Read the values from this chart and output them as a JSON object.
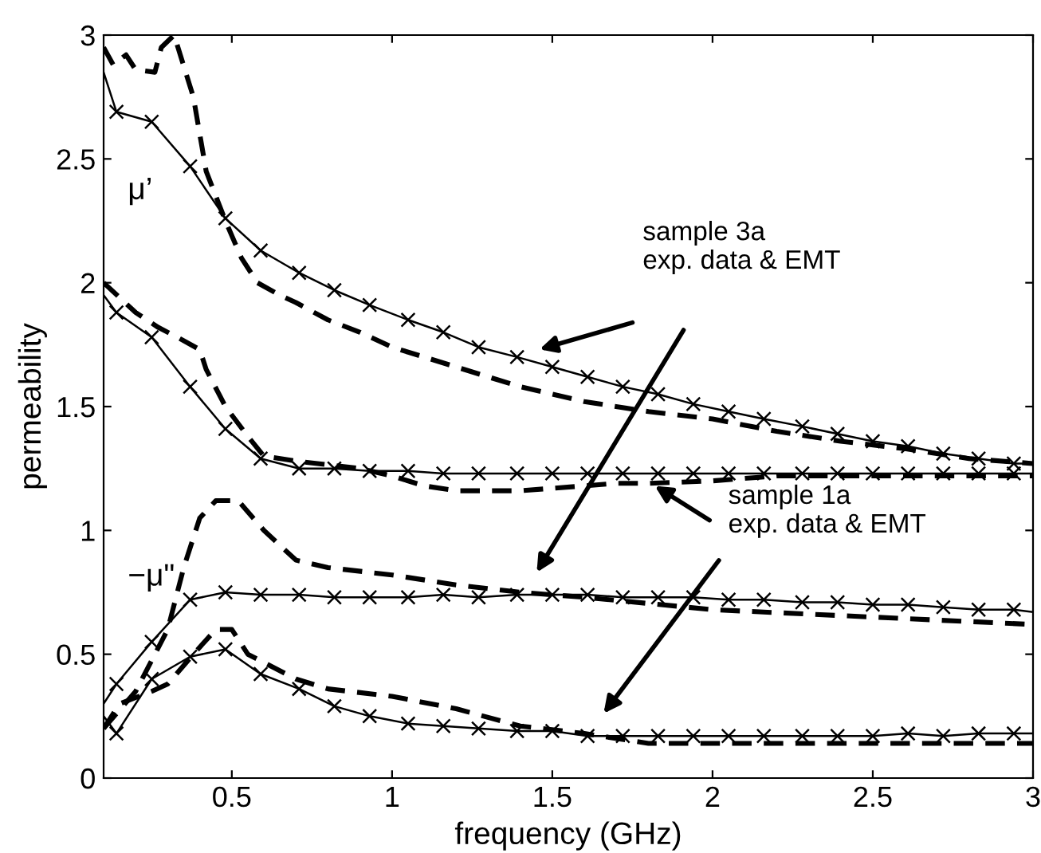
{
  "chart_data": {
    "type": "line",
    "xlabel": "frequency (GHz)",
    "ylabel": "permeability",
    "xlim": [
      0.1,
      3
    ],
    "ylim": [
      0,
      3
    ],
    "xticks": [
      0.5,
      1,
      1.5,
      2,
      2.5,
      3
    ],
    "yticks": [
      0,
      0.5,
      1,
      1.5,
      2,
      2.5,
      3
    ],
    "grid": false,
    "legend": false,
    "series": [
      {
        "color": "#000000",
        "marker": "cross",
        "line_style": "solid",
        "x": [
          0.1,
          0.14,
          0.25,
          0.37,
          0.48,
          0.59,
          0.71,
          0.82,
          0.93,
          1.05,
          1.16,
          1.27,
          1.39,
          1.5,
          1.61,
          1.72,
          1.83,
          1.94,
          2.05,
          2.16,
          2.28,
          2.39,
          2.5,
          2.61,
          2.72,
          2.83,
          2.94,
          3
        ],
        "values": [
          2.85,
          2.69,
          2.65,
          2.47,
          2.26,
          2.13,
          2.04,
          1.97,
          1.91,
          1.85,
          1.8,
          1.74,
          1.7,
          1.66,
          1.62,
          1.58,
          1.55,
          1.51,
          1.48,
          1.45,
          1.42,
          1.39,
          1.36,
          1.34,
          1.31,
          1.29,
          1.27,
          1.27
        ]
      },
      {
        "color": "#000000",
        "marker": "none",
        "line_style": "dashed",
        "x": [
          0.1,
          0.13,
          0.17,
          0.2,
          0.26,
          0.28,
          0.32,
          0.38,
          0.42,
          0.48,
          0.53,
          0.58,
          0.65,
          0.7,
          0.8,
          0.9,
          1.0,
          1.1,
          1.2,
          1.3,
          1.4,
          1.5,
          1.6,
          1.8,
          2.0,
          2.2,
          2.4,
          2.6,
          2.8,
          3
        ],
        "values": [
          2.95,
          2.88,
          2.92,
          2.86,
          2.85,
          2.95,
          3.0,
          2.75,
          2.45,
          2.25,
          2.1,
          2.0,
          1.95,
          1.92,
          1.85,
          1.8,
          1.74,
          1.7,
          1.66,
          1.62,
          1.58,
          1.55,
          1.52,
          1.48,
          1.45,
          1.4,
          1.36,
          1.33,
          1.29,
          1.27
        ]
      },
      {
        "color": "#000000",
        "marker": "cross",
        "line_style": "solid",
        "x": [
          0.1,
          0.14,
          0.25,
          0.37,
          0.48,
          0.59,
          0.71,
          0.82,
          0.93,
          1.05,
          1.16,
          1.27,
          1.39,
          1.5,
          1.61,
          1.72,
          1.83,
          1.94,
          2.05,
          2.16,
          2.28,
          2.39,
          2.5,
          2.61,
          2.72,
          2.83,
          2.94,
          3
        ],
        "values": [
          1.95,
          1.88,
          1.78,
          1.58,
          1.41,
          1.29,
          1.25,
          1.25,
          1.24,
          1.24,
          1.23,
          1.23,
          1.23,
          1.23,
          1.23,
          1.23,
          1.23,
          1.23,
          1.23,
          1.23,
          1.23,
          1.23,
          1.23,
          1.23,
          1.23,
          1.23,
          1.23,
          1.23
        ]
      },
      {
        "color": "#000000",
        "marker": "none",
        "line_style": "dashed",
        "x": [
          0.1,
          0.2,
          0.27,
          0.33,
          0.4,
          0.42,
          0.48,
          0.55,
          0.6,
          0.7,
          0.9,
          1.0,
          1.1,
          1.2,
          1.4,
          1.5,
          1.7,
          1.8,
          2.0,
          2.2,
          2.5,
          3
        ],
        "values": [
          2.0,
          1.88,
          1.82,
          1.78,
          1.73,
          1.65,
          1.5,
          1.38,
          1.3,
          1.28,
          1.25,
          1.22,
          1.18,
          1.16,
          1.16,
          1.17,
          1.19,
          1.19,
          1.2,
          1.22,
          1.22,
          1.22
        ]
      },
      {
        "color": "#000000",
        "marker": "cross",
        "line_style": "solid",
        "x": [
          0.1,
          0.14,
          0.25,
          0.37,
          0.48,
          0.59,
          0.71,
          0.82,
          0.93,
          1.05,
          1.16,
          1.27,
          1.39,
          1.5,
          1.61,
          1.72,
          1.83,
          1.94,
          2.05,
          2.16,
          2.28,
          2.39,
          2.5,
          2.61,
          2.72,
          2.83,
          2.94,
          3
        ],
        "values": [
          0.3,
          0.38,
          0.55,
          0.72,
          0.75,
          0.74,
          0.74,
          0.73,
          0.73,
          0.73,
          0.74,
          0.73,
          0.74,
          0.74,
          0.74,
          0.73,
          0.73,
          0.73,
          0.72,
          0.72,
          0.71,
          0.71,
          0.7,
          0.7,
          0.69,
          0.68,
          0.68,
          0.67
        ]
      },
      {
        "color": "#000000",
        "marker": "none",
        "line_style": "dashed",
        "x": [
          0.1,
          0.2,
          0.3,
          0.35,
          0.4,
          0.45,
          0.52,
          0.6,
          0.7,
          0.8,
          1.0,
          1.2,
          1.4,
          1.6,
          2.0,
          2.5,
          3
        ],
        "values": [
          0.2,
          0.35,
          0.6,
          0.85,
          1.05,
          1.12,
          1.12,
          1.0,
          0.88,
          0.85,
          0.82,
          0.78,
          0.75,
          0.73,
          0.68,
          0.65,
          0.62
        ]
      },
      {
        "color": "#000000",
        "marker": "cross",
        "line_style": "solid",
        "x": [
          0.1,
          0.14,
          0.25,
          0.37,
          0.48,
          0.59,
          0.71,
          0.82,
          0.93,
          1.05,
          1.16,
          1.27,
          1.39,
          1.5,
          1.61,
          1.72,
          1.83,
          1.94,
          2.05,
          2.16,
          2.28,
          2.39,
          2.5,
          2.61,
          2.72,
          2.83,
          2.94,
          3
        ],
        "values": [
          0.25,
          0.18,
          0.4,
          0.49,
          0.52,
          0.42,
          0.36,
          0.29,
          0.25,
          0.22,
          0.21,
          0.2,
          0.19,
          0.19,
          0.17,
          0.17,
          0.17,
          0.17,
          0.17,
          0.17,
          0.17,
          0.17,
          0.17,
          0.18,
          0.17,
          0.18,
          0.18,
          0.18
        ]
      },
      {
        "color": "#000000",
        "marker": "none",
        "line_style": "dashed",
        "x": [
          0.1,
          0.15,
          0.25,
          0.3,
          0.38,
          0.45,
          0.5,
          0.55,
          0.7,
          0.8,
          1.0,
          1.2,
          1.4,
          1.6,
          1.8,
          2.0,
          2.5,
          3
        ],
        "values": [
          0.2,
          0.3,
          0.35,
          0.38,
          0.5,
          0.6,
          0.6,
          0.5,
          0.4,
          0.36,
          0.33,
          0.28,
          0.21,
          0.18,
          0.14,
          0.14,
          0.14,
          0.14
        ]
      }
    ],
    "annotations": [
      "μ’",
      "−μ\"",
      "sample 3a\nexp. data & EMT",
      {
        "text": "sample 1a\nexp. data & EMT",
        "x": 1.82,
        "y": 1.18
      }
    ]
  }
}
